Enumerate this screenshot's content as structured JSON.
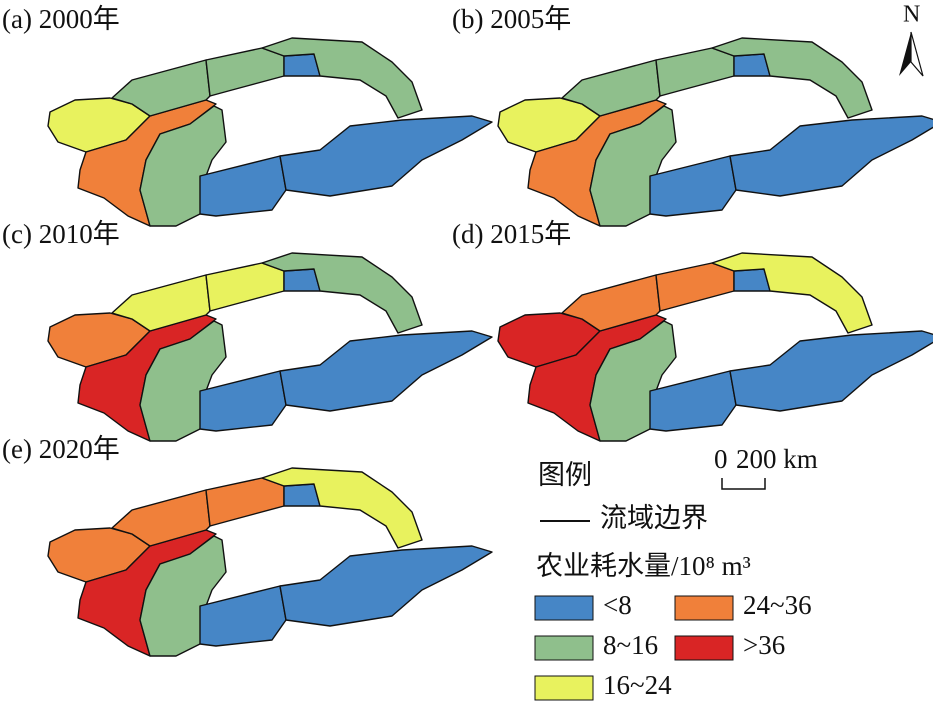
{
  "panels": [
    {
      "label": "(a) 2000年",
      "classes": [
        2,
        3,
        1,
        1,
        1,
        0,
        1,
        0,
        0
      ]
    },
    {
      "label": "(b) 2005年",
      "classes": [
        2,
        3,
        1,
        1,
        1,
        0,
        1,
        0,
        0
      ]
    },
    {
      "label": "(c) 2010年",
      "classes": [
        3,
        4,
        1,
        2,
        2,
        0,
        1,
        0,
        0
      ]
    },
    {
      "label": "(d) 2015年",
      "classes": [
        4,
        4,
        1,
        3,
        3,
        0,
        2,
        0,
        0
      ]
    },
    {
      "label": "(e) 2020年",
      "classes": [
        3,
        4,
        1,
        3,
        3,
        0,
        2,
        0,
        0
      ]
    }
  ],
  "legend": {
    "title": "图例",
    "boundary": "流域边界",
    "fill_title": "农业耗水量/10⁸ m³",
    "classes": [
      {
        "label": "<8",
        "color": "#4686c6"
      },
      {
        "label": "8~16",
        "color": "#8fbf8c"
      },
      {
        "label": "16~24",
        "color": "#e8f25e"
      },
      {
        "label": "24~36",
        "color": "#f0803a"
      },
      {
        "label": ">36",
        "color": "#d92525"
      }
    ]
  },
  "scale_bar": {
    "start": "0",
    "end": "200 km"
  },
  "north": "N"
}
